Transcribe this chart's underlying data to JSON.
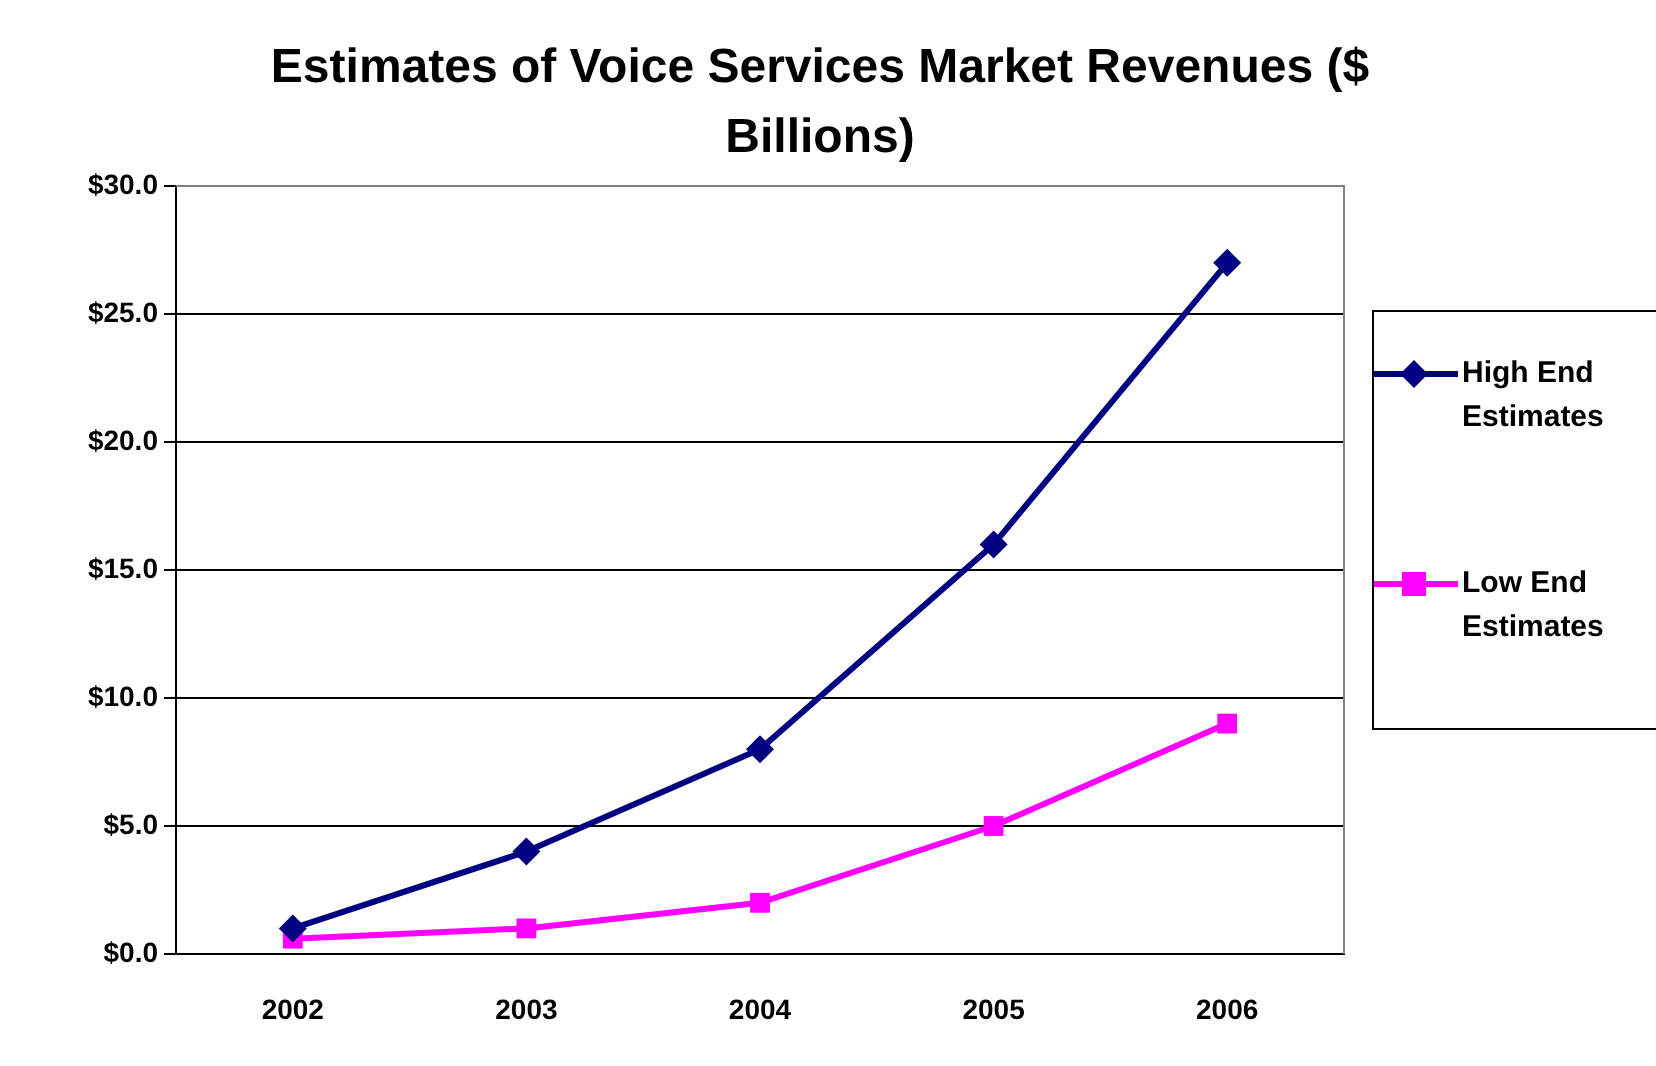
{
  "chart_data": {
    "type": "line",
    "title": "Estimates of Voice Services Market Revenues ($ Billions)",
    "categories": [
      "2002",
      "2003",
      "2004",
      "2005",
      "2006"
    ],
    "series": [
      {
        "name": "High End Estimates",
        "color": "#000080",
        "marker": "diamond",
        "values": [
          1,
          4,
          8,
          16,
          27
        ]
      },
      {
        "name": "Low End Estimates",
        "color": "#ff00ff",
        "marker": "square",
        "values": [
          0.6,
          1,
          2,
          5,
          9
        ]
      }
    ],
    "ylim": [
      0,
      30
    ],
    "yticks": [
      {
        "value": 0,
        "label": "$0.0"
      },
      {
        "value": 5,
        "label": "$5.0"
      },
      {
        "value": 10,
        "label": "$10.0"
      },
      {
        "value": 15,
        "label": "$15.0"
      },
      {
        "value": 20,
        "label": "$20.0"
      },
      {
        "value": 25,
        "label": "$25.0"
      },
      {
        "value": 30,
        "label": "$30.0"
      }
    ],
    "grid": "y",
    "legend": "right",
    "line_style": "solid"
  }
}
